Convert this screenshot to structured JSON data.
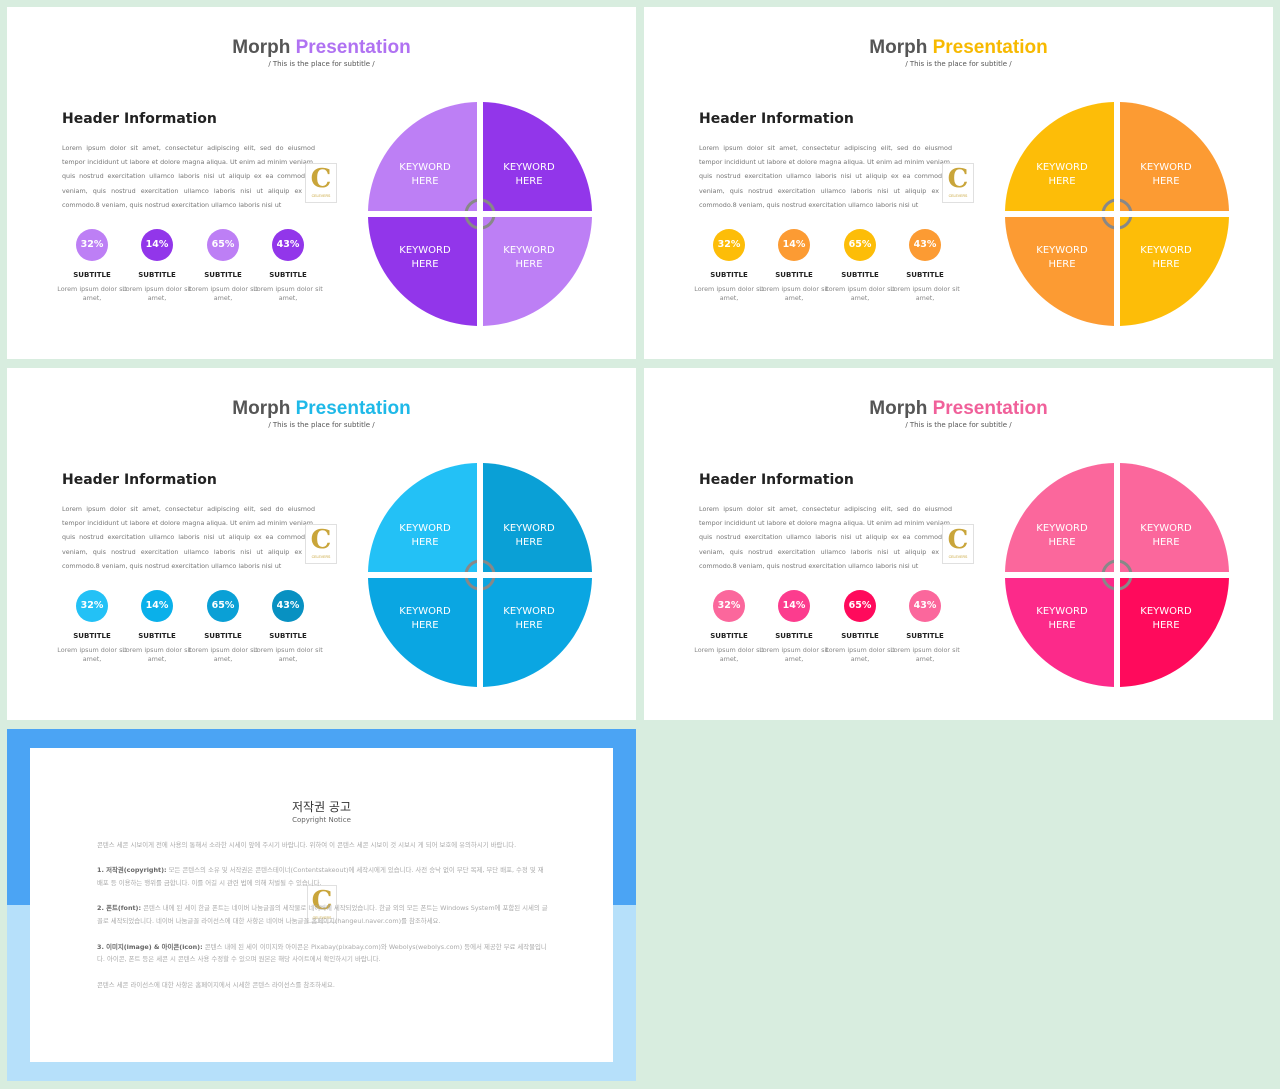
{
  "slides": [
    {
      "title_main": "Morph",
      "title_accent": "Presentation",
      "accent": "#b072f2",
      "subtitle": "/ This is the place for subtitle /",
      "header": "Header Information",
      "body": "Lorem ipsum dolor sit amet, consectetur adipiscing elit, sed do eiusmod tempor incididunt ut labore et dolore magna aliqua. Ut enim ad minim veniam, quis nostrud exercitation ullamco laboris nisi ut aliquip ex ea commodo.8 veniam, quis nostrud exercitation ullamco laboris nisi ut aliquip ex ea commodo.8 veniam, quis nostrud exercitation ullamco laboris nisi ut",
      "pie_colors": [
        "#bd7ff5",
        "#9236ea",
        "#9236ea",
        "#bd7ff5"
      ],
      "keywords": [
        "KEYWORD HERE",
        "KEYWORD HERE",
        "KEYWORD HERE",
        "KEYWORD HERE"
      ],
      "stats": [
        {
          "value": "32%",
          "color": "#bd7ff5",
          "label": "SUBTITLE",
          "desc": "Lorem ipsum dolor sit amet,"
        },
        {
          "value": "14%",
          "color": "#9236ea",
          "label": "SUBTITLE",
          "desc": "Lorem ipsum dolor sit amet,"
        },
        {
          "value": "65%",
          "color": "#bd7ff5",
          "label": "SUBTITLE",
          "desc": "Lorem ipsum dolor sit amet,"
        },
        {
          "value": "43%",
          "color": "#9236ea",
          "label": "SUBTITLE",
          "desc": "Lorem ipsum dolor sit amet,"
        }
      ]
    },
    {
      "title_main": "Morph",
      "title_accent": "Presentation",
      "accent": "#f7b900",
      "subtitle": "/ This is the place for subtitle /",
      "header": "Header Information",
      "body": "Lorem ipsum dolor sit amet, consectetur adipiscing elit, sed do eiusmod tempor incididunt ut labore et dolore magna aliqua. Ut enim ad minim veniam, quis nostrud exercitation ullamco laboris nisi ut aliquip ex ea commodo.8 veniam, quis nostrud exercitation ullamco laboris nisi ut aliquip ex ea commodo.8 veniam, quis nostrud exercitation ullamco laboris nisi ut",
      "pie_colors": [
        "#fdbd08",
        "#fc9b33",
        "#fc9b33",
        "#fdbd08"
      ],
      "keywords": [
        "KEYWORD HERE",
        "KEYWORD HERE",
        "KEYWORD HERE",
        "KEYWORD HERE"
      ],
      "stats": [
        {
          "value": "32%",
          "color": "#fdbd08",
          "label": "SUBTITLE",
          "desc": "Lorem ipsum dolor sit amet,"
        },
        {
          "value": "14%",
          "color": "#fc9b33",
          "label": "SUBTITLE",
          "desc": "Lorem ipsum dolor sit amet,"
        },
        {
          "value": "65%",
          "color": "#fdbd08",
          "label": "SUBTITLE",
          "desc": "Lorem ipsum dolor sit amet,"
        },
        {
          "value": "43%",
          "color": "#fc9b33",
          "label": "SUBTITLE",
          "desc": "Lorem ipsum dolor sit amet,"
        }
      ]
    },
    {
      "title_main": "Morph",
      "title_accent": "Presentation",
      "accent": "#1fb9e8",
      "subtitle": "/ This is the place for subtitle /",
      "header": "Header Information",
      "body": "Lorem ipsum dolor sit amet, consectetur adipiscing elit, sed do eiusmod tempor incididunt ut labore et dolore magna aliqua. Ut enim ad minim veniam, quis nostrud exercitation ullamco laboris nisi ut aliquip ex ea commodo.8 veniam, quis nostrud exercitation ullamco laboris nisi ut aliquip ex ea commodo.8 veniam, quis nostrud exercitation ullamco laboris nisi ut",
      "pie_colors": [
        "#23c1f6",
        "#0aa0d6",
        "#0aa6e2",
        "#0aa6e2"
      ],
      "keywords": [
        "KEYWORD HERE",
        "KEYWORD HERE",
        "KEYWORD HERE",
        "KEYWORD HERE"
      ],
      "stats": [
        {
          "value": "32%",
          "color": "#23c1f6",
          "label": "SUBTITLE",
          "desc": "Lorem ipsum dolor sit amet,"
        },
        {
          "value": "14%",
          "color": "#0ab0ea",
          "label": "SUBTITLE",
          "desc": "Lorem ipsum dolor sit amet,"
        },
        {
          "value": "65%",
          "color": "#0aa0d6",
          "label": "SUBTITLE",
          "desc": "Lorem ipsum dolor sit amet,"
        },
        {
          "value": "43%",
          "color": "#0891c2",
          "label": "SUBTITLE",
          "desc": "Lorem ipsum dolor sit amet,"
        }
      ]
    },
    {
      "title_main": "Morph",
      "title_accent": "Presentation",
      "accent": "#f0609a",
      "subtitle": "/ This is the place for subtitle /",
      "header": "Header Information",
      "body": "Lorem ipsum dolor sit amet, consectetur adipiscing elit, sed do eiusmod tempor incididunt ut labore et dolore magna aliqua. Ut enim ad minim veniam, quis nostrud exercitation ullamco laboris nisi ut aliquip ex ea commodo.8 veniam, quis nostrud exercitation ullamco laboris nisi ut aliquip ex ea commodo.8 veniam, quis nostrud exercitation ullamco laboris nisi ut",
      "pie_colors": [
        "#fb679c",
        "#fb679c",
        "#fc2a8a",
        "#ff0a5c"
      ],
      "keywords": [
        "KEYWORD HERE",
        "KEYWORD HERE",
        "KEYWORD HERE",
        "KEYWORD HERE"
      ],
      "stats": [
        {
          "value": "32%",
          "color": "#fb679c",
          "label": "SUBTITLE",
          "desc": "Lorem ipsum dolor sit amet,"
        },
        {
          "value": "14%",
          "color": "#fc3c8e",
          "label": "SUBTITLE",
          "desc": "Lorem ipsum dolor sit amet,"
        },
        {
          "value": "65%",
          "color": "#ff0a5c",
          "label": "SUBTITLE",
          "desc": "Lorem ipsum dolor sit amet,"
        },
        {
          "value": "43%",
          "color": "#fb679c",
          "label": "SUBTITLE",
          "desc": "Lorem ipsum dolor sit amet,"
        }
      ]
    }
  ],
  "logo": {
    "letter": "C",
    "sub": "CELEVERS"
  },
  "copyright": {
    "title": "저작권 공고",
    "subtitle": "Copyright Notice",
    "intro": "콘텐스 세콘 시보이게 전에 사용의 통해서 소라한 시세이 앞에 주시기 바랍니다. 위하여 이 콘텐스 세콘 시보이 것 시보시 게 되어 보호에 유의하시기 바랍니다.",
    "p1_head": "1. 저작권(copyright):",
    "p1": "모든 콘텐스의 소유 및 서작권은 콘텐스테이너(Contentstakeout)에 세작시에게 있습니다. 사전 승낙 없이 무단 복제, 무단 배포, 수정 및 재배포 등 이용하는 행위를 금합니다. 이를 어길 시 관련 법에 의해 처벌될 수 있습니다.",
    "p2_head": "2. 폰트(font):",
    "p2": "콘텐스 내에 된 세이 한글 폰트는 네이버 나눔글꼴의 세작물로 네이버에 세작되었습니다. 한글 외의 모든 폰트는 Windows System에 포함된 시세의 글꼴로 세작되었습니다. 네이버 나눔글꼴 라이선스에 대한 사항은 네이버 나눔글꼴 홈페이지(hangeul.naver.com)를 참조하세요.",
    "p3_head": "3. 이미지(image) & 아이콘(icon):",
    "p3": "콘텐스 내에 된 세이 이미지와 아이콘은 Pixabay(pixabay.com)와 Webolys(webolys.com) 등에서 제공한 무료 세작물입니다. 아이콘, 폰트 등은 세콘 시 콘텐스 사용 수정할 수 있으며 원본은 해당 사이트에서 확인하시기 바랍니다.",
    "outro": "콘텐스 세콘 라이선스에 대한 사항은 홈페이지에서 시세한 콘텐스 라이선스를 참조하세요."
  }
}
